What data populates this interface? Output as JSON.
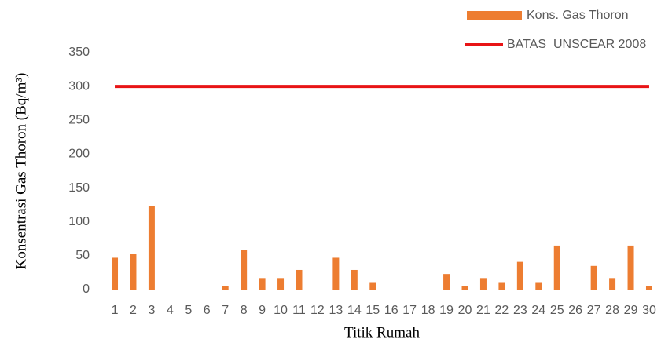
{
  "chart_data": {
    "type": "bar",
    "y_label": "Konsentrasi Gas Thoron (Bq/m³)",
    "x_label": "Titik Rumah",
    "categories": [
      "1",
      "2",
      "3",
      "4",
      "5",
      "6",
      "7",
      "8",
      "9",
      "10",
      "11",
      "12",
      "13",
      "14",
      "15",
      "16",
      "17",
      "18",
      "19",
      "20",
      "21",
      "22",
      "23",
      "24",
      "25",
      "26",
      "27",
      "28",
      "29",
      "30"
    ],
    "series": [
      {
        "name": "Kons. Gas Thoron",
        "type": "bar",
        "color": "#ed7d31",
        "values": [
          47,
          53,
          123,
          0,
          0,
          0,
          5,
          58,
          17,
          17,
          29,
          0,
          47,
          29,
          11,
          0,
          0,
          0,
          23,
          5,
          17,
          11,
          41,
          11,
          65,
          0,
          35,
          17,
          65,
          5
        ]
      },
      {
        "name": "BATAS  UNSCEAR 2008",
        "type": "line",
        "color": "#e81416",
        "values": [
          300,
          300,
          300,
          300,
          300,
          300,
          300,
          300,
          300,
          300,
          300,
          300,
          300,
          300,
          300,
          300,
          300,
          300,
          300,
          300,
          300,
          300,
          300,
          300,
          300,
          300,
          300,
          300,
          300,
          300
        ]
      }
    ],
    "ylim": [
      0,
      350
    ],
    "yticks": [
      0,
      50,
      100,
      150,
      200,
      250,
      300,
      350
    ],
    "grid": false,
    "legend": "top-right"
  }
}
